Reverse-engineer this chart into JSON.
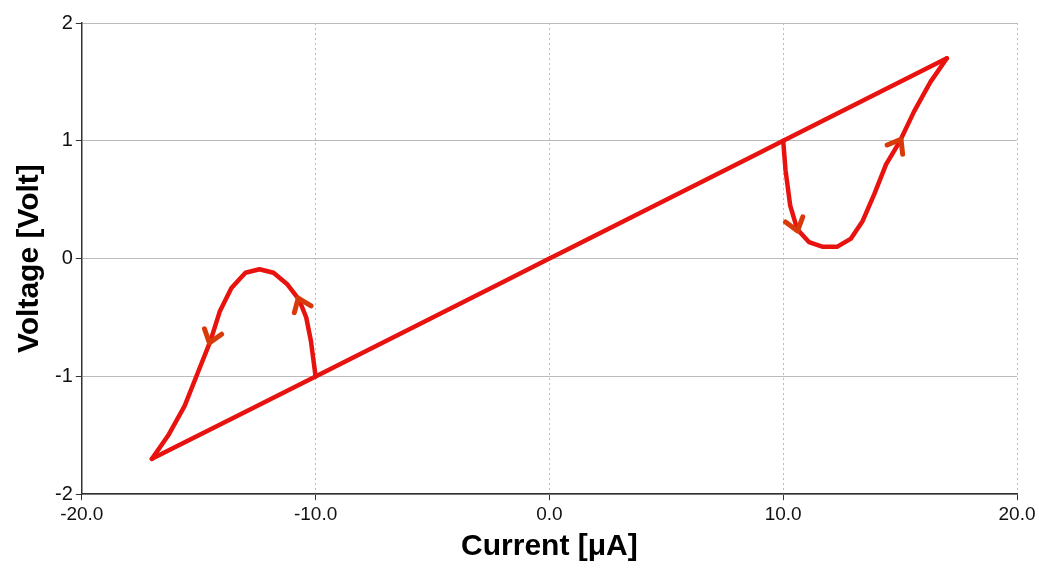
{
  "chart_data": {
    "type": "line",
    "xlabel": "Current [μA]",
    "ylabel": "Voltage [Volt]",
    "xlim": [
      -20,
      20
    ],
    "ylim": [
      -2,
      2
    ],
    "xticks": [
      {
        "value": -20,
        "label": "-20.0"
      },
      {
        "value": -10,
        "label": "-10.0"
      },
      {
        "value": 0,
        "label": "0.0"
      },
      {
        "value": 10,
        "label": "10.0"
      },
      {
        "value": 20,
        "label": "20.0"
      }
    ],
    "yticks": [
      -2,
      -1,
      0,
      1,
      2
    ],
    "grid": true,
    "legend": false,
    "marker": "none",
    "line_style": "solid",
    "series": [
      {
        "color": "#e8120e",
        "x": [
          10,
          10.1,
          10.3,
          10.6,
          11.1,
          11.7,
          12.3,
          12.9,
          13.4,
          13.9,
          14.4,
          15,
          15.6,
          16.3,
          17
        ],
        "values": [
          1,
          0.75,
          0.45,
          0.25,
          0.14,
          0.1,
          0.1,
          0.17,
          0.32,
          0.55,
          0.8,
          1.0,
          1.25,
          1.5,
          1.7
        ]
      },
      {
        "color": "#e8120e",
        "x": [
          -17,
          -10,
          0,
          10,
          17
        ],
        "values": [
          -1.7,
          -1,
          0,
          1,
          1.7
        ]
      },
      {
        "color": "#e8120e",
        "x": [
          -17,
          -16.3,
          -15.6,
          -15,
          -14.5,
          -14.1,
          -13.6,
          -13,
          -12.4,
          -11.8,
          -11.2,
          -10.7,
          -10.4,
          -10.2,
          -10
        ],
        "values": [
          -1.7,
          -1.5,
          -1.25,
          -0.95,
          -0.7,
          -0.45,
          -0.25,
          -0.12,
          -0.09,
          -0.12,
          -0.22,
          -0.35,
          -0.5,
          -0.7,
          -1
        ]
      }
    ]
  }
}
